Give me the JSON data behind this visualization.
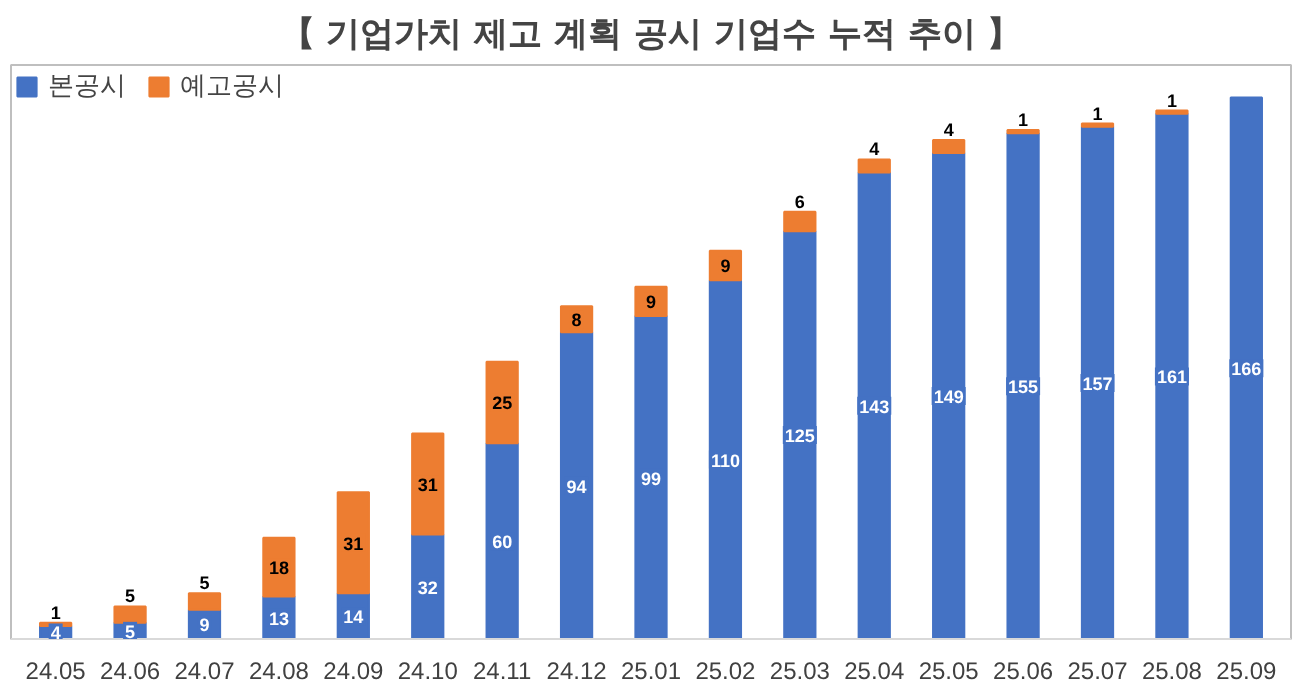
{
  "chart_data": {
    "type": "bar",
    "stacked": true,
    "title": "【 기업가치 제고 계획 공시 기업수 누적 추이 】",
    "categories": [
      "24.05",
      "24.06",
      "24.07",
      "24.08",
      "24.09",
      "24.10",
      "24.11",
      "24.12",
      "25.01",
      "25.02",
      "25.03",
      "25.04",
      "25.05",
      "25.06",
      "25.07",
      "25.08",
      "25.09"
    ],
    "series": [
      {
        "name": "본공시",
        "color": "#4472c4",
        "values": [
          4,
          5,
          9,
          13,
          14,
          32,
          60,
          94,
          99,
          110,
          125,
          143,
          149,
          155,
          157,
          161,
          166
        ]
      },
      {
        "name": "예고공시",
        "color": "#ed7d31",
        "values": [
          1,
          5,
          5,
          18,
          31,
          31,
          25,
          8,
          9,
          9,
          6,
          4,
          4,
          1,
          1,
          1,
          null
        ]
      }
    ],
    "data_labels": true,
    "legend": "top left",
    "grid": false
  }
}
